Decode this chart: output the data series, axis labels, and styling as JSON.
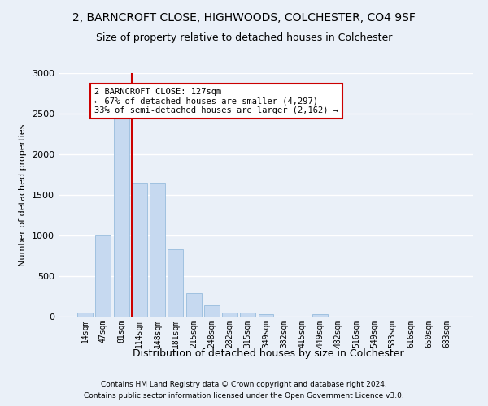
{
  "title": "2, BARNCROFT CLOSE, HIGHWOODS, COLCHESTER, CO4 9SF",
  "subtitle": "Size of property relative to detached houses in Colchester",
  "xlabel": "Distribution of detached houses by size in Colchester",
  "ylabel": "Number of detached properties",
  "bar_labels": [
    "14sqm",
    "47sqm",
    "81sqm",
    "114sqm",
    "148sqm",
    "181sqm",
    "215sqm",
    "248sqm",
    "282sqm",
    "315sqm",
    "349sqm",
    "382sqm",
    "415sqm",
    "449sqm",
    "482sqm",
    "516sqm",
    "549sqm",
    "583sqm",
    "616sqm",
    "650sqm",
    "683sqm"
  ],
  "bar_values": [
    50,
    1000,
    2450,
    1650,
    1650,
    830,
    295,
    145,
    50,
    50,
    30,
    0,
    0,
    30,
    0,
    0,
    0,
    0,
    0,
    0,
    0
  ],
  "bar_color": "#c6d9f0",
  "bar_edge_color": "#8ab4d8",
  "highlight_line_index": 3,
  "highlight_line_color": "#cc0000",
  "ylim": [
    0,
    3000
  ],
  "yticks": [
    0,
    500,
    1000,
    1500,
    2000,
    2500,
    3000
  ],
  "annotation_text": "2 BARNCROFT CLOSE: 127sqm\n← 67% of detached houses are smaller (4,297)\n33% of semi-detached houses are larger (2,162) →",
  "annotation_box_color": "#ffffff",
  "annotation_box_edge_color": "#cc0000",
  "footer_line1": "Contains HM Land Registry data © Crown copyright and database right 2024.",
  "footer_line2": "Contains public sector information licensed under the Open Government Licence v3.0.",
  "background_color": "#eaf0f8",
  "grid_color": "#ffffff",
  "title_fontsize": 10,
  "subtitle_fontsize": 9
}
